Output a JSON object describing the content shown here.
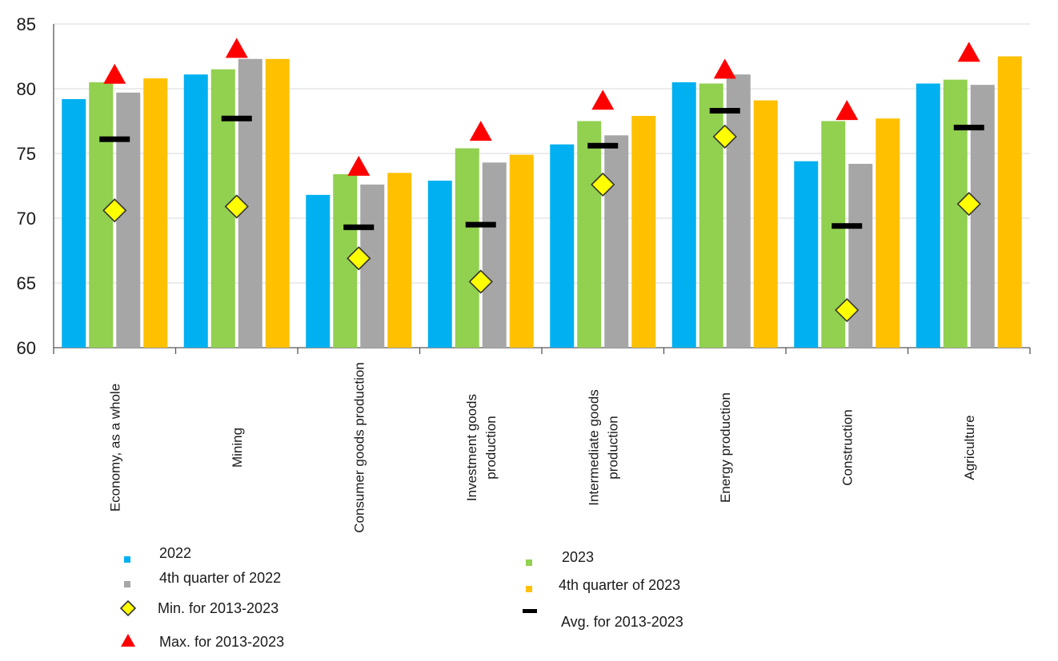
{
  "chart_data": {
    "type": "bar",
    "categories": [
      "Economy, as a whole",
      "Mining",
      "Consumer goods production",
      "Investment goods production",
      "Intermediate goods production",
      "Energy production",
      "Construction",
      "Agriculture"
    ],
    "category_label_lines": [
      [
        "Economy, as a whole"
      ],
      [
        "Mining"
      ],
      [
        "Consumer goods production"
      ],
      [
        "Investment goods",
        "production"
      ],
      [
        "Intermediate goods",
        "production"
      ],
      [
        "Energy production"
      ],
      [
        "Construction"
      ],
      [
        "Agriculture"
      ]
    ],
    "ylim": [
      60,
      85
    ],
    "yticks": [
      60,
      65,
      70,
      75,
      80,
      85
    ],
    "grid": true,
    "series": [
      {
        "name": "2022",
        "color": "#00B0F0",
        "values": [
          79.2,
          81.1,
          71.8,
          72.9,
          75.7,
          80.5,
          74.4,
          80.4
        ]
      },
      {
        "name": "2023",
        "color": "#92D050",
        "values": [
          80.5,
          81.5,
          73.4,
          75.4,
          77.5,
          80.4,
          77.5,
          80.7
        ]
      },
      {
        "name": "4th quarter of 2022",
        "color": "#A6A6A6",
        "values": [
          79.7,
          82.3,
          72.6,
          74.3,
          76.4,
          81.1,
          74.2,
          80.3
        ]
      },
      {
        "name": "4th quarter of 2023",
        "color": "#FFC000",
        "values": [
          80.8,
          82.3,
          73.5,
          74.9,
          77.9,
          79.1,
          77.7,
          82.5
        ]
      }
    ],
    "markers": {
      "min": {
        "name": "Min. for 2013-2023",
        "color": "#FFFF00",
        "values": [
          70.6,
          70.9,
          66.9,
          65.1,
          72.6,
          76.3,
          62.9,
          71.1
        ]
      },
      "max": {
        "name": "Max. for 2013-2023",
        "color": "#FF0000",
        "values": [
          81.0,
          83.0,
          73.9,
          76.6,
          79.0,
          81.4,
          78.2,
          82.7
        ]
      },
      "avg": {
        "name": "Avg. for 2013-2023",
        "color": "#000000",
        "values": [
          76.1,
          77.7,
          69.3,
          69.5,
          75.6,
          78.3,
          69.4,
          77.0
        ]
      }
    }
  },
  "legend": {
    "items": {
      "s2022": "2022",
      "s2023": "2023",
      "q4_2022": "4th quarter of 2022",
      "q4_2023": "4th quarter of 2023",
      "min": "Min. for 2013-2023",
      "max": "Max. for 2013-2023",
      "avg": "Avg. for 2013-2023"
    }
  }
}
